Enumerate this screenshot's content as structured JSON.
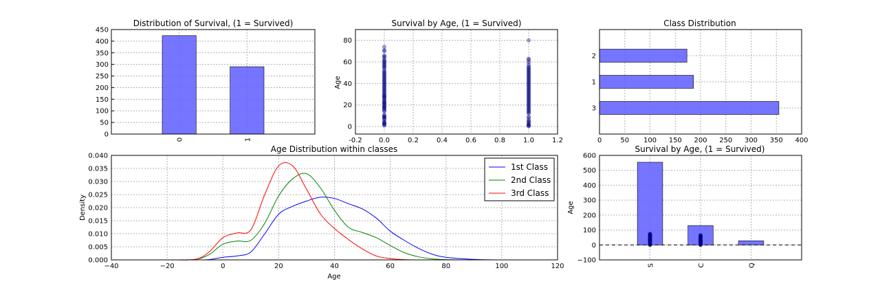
{
  "chart_data": [
    {
      "id": "survival_dist",
      "type": "bar",
      "title": "Distribution of Survival, (1 = Survived)",
      "categories": [
        "0",
        "1"
      ],
      "values": [
        424,
        290
      ],
      "ylim": [
        0,
        450
      ],
      "yticks": [
        0,
        50,
        100,
        150,
        200,
        250,
        300,
        350,
        400,
        450
      ],
      "xlabel": "",
      "ylabel": "",
      "grid": true,
      "color": "#6666ff"
    },
    {
      "id": "survival_by_age",
      "type": "scatter",
      "title": "Survival by Age,  (1 = Survived)",
      "xlabel": "",
      "ylabel": "Age",
      "xlim": [
        -0.2,
        1.2
      ],
      "ylim": [
        -7,
        90
      ],
      "xticks": [
        "-0.2",
        "0.0",
        "0.2",
        "0.4",
        "0.6",
        "0.8",
        "1.0",
        "1.2"
      ],
      "yticks": [
        0,
        20,
        40,
        60,
        80
      ],
      "grid": true,
      "color": "#000080",
      "series": [
        {
          "x": 0,
          "values": [
            1,
            2,
            2,
            3,
            4,
            4,
            6,
            7,
            8,
            9,
            9,
            10,
            11,
            14,
            15,
            16,
            17,
            18,
            18,
            19,
            20,
            21,
            22,
            22,
            23,
            24,
            25,
            26,
            27,
            28,
            28,
            29,
            30,
            31,
            32,
            33,
            34,
            35,
            36,
            37,
            38,
            39,
            40,
            41,
            42,
            43,
            44,
            45,
            46,
            47,
            48,
            49,
            50,
            51,
            52,
            54,
            55,
            56,
            57,
            58,
            59,
            60,
            61,
            62,
            64,
            65,
            66,
            70,
            71,
            74
          ]
        },
        {
          "x": 1,
          "values": [
            0.4,
            0.8,
            1,
            2,
            3,
            4,
            5,
            6,
            8,
            9,
            12,
            13,
            14,
            15,
            16,
            17,
            18,
            19,
            20,
            21,
            22,
            23,
            24,
            25,
            26,
            27,
            28,
            29,
            30,
            31,
            32,
            33,
            34,
            35,
            36,
            37,
            38,
            39,
            40,
            41,
            42,
            43,
            44,
            45,
            46,
            47,
            48,
            49,
            50,
            51,
            52,
            53,
            54,
            55,
            56,
            58,
            60,
            62,
            63,
            80
          ]
        }
      ]
    },
    {
      "id": "class_dist",
      "type": "bar",
      "orientation": "horizontal",
      "title": "Class Distribution",
      "categories": [
        "3",
        "1",
        "2"
      ],
      "values": [
        355,
        186,
        173
      ],
      "xlim": [
        0,
        400
      ],
      "xticks": [
        0,
        50,
        100,
        150,
        200,
        250,
        300,
        350,
        400
      ],
      "xlabel": "",
      "ylabel": "",
      "grid": true,
      "color": "#6666ff"
    },
    {
      "id": "age_kde",
      "type": "line",
      "title": "Age Distribution within classes",
      "xlabel": "Age",
      "ylabel": "Density",
      "xlim": [
        -40,
        120
      ],
      "ylim": [
        0,
        0.04
      ],
      "xticks": [
        -40,
        -20,
        0,
        20,
        40,
        60,
        80,
        100,
        120
      ],
      "yticks": [
        "0.000",
        "0.005",
        "0.010",
        "0.015",
        "0.020",
        "0.025",
        "0.030",
        "0.035",
        "0.040"
      ],
      "grid": true,
      "legend_position": "top-right",
      "x": [
        -40,
        -20,
        -10,
        -5,
        0,
        5,
        10,
        15,
        20,
        25,
        30,
        35,
        40,
        45,
        50,
        55,
        60,
        65,
        70,
        75,
        80,
        90,
        100,
        110,
        120
      ],
      "series": [
        {
          "name": "1st Class",
          "color": "#0000ff",
          "values": [
            0,
            0,
            0,
            0.0001,
            0.001,
            0.0015,
            0.003,
            0.01,
            0.0175,
            0.0205,
            0.0225,
            0.024,
            0.0235,
            0.0215,
            0.0195,
            0.016,
            0.011,
            0.0075,
            0.0045,
            0.0022,
            0.001,
            0.0002,
            0,
            0,
            0
          ]
        },
        {
          "name": "2nd Class",
          "color": "#008000",
          "values": [
            0,
            0,
            0.0002,
            0.002,
            0.006,
            0.0072,
            0.0075,
            0.014,
            0.0245,
            0.031,
            0.033,
            0.0275,
            0.019,
            0.0125,
            0.0105,
            0.0085,
            0.0055,
            0.0028,
            0.0012,
            0.0004,
            0.0001,
            0,
            0,
            0,
            0
          ]
        },
        {
          "name": "3rd Class",
          "color": "#ff0000",
          "values": [
            0,
            0,
            0.0002,
            0.003,
            0.0085,
            0.0103,
            0.0115,
            0.025,
            0.036,
            0.036,
            0.027,
            0.0175,
            0.012,
            0.0078,
            0.0042,
            0.0015,
            0.0005,
            0.0001,
            0,
            0,
            0,
            0,
            0,
            0,
            0
          ]
        }
      ]
    },
    {
      "id": "embarked",
      "type": "bar",
      "title": "Survival by Age,  (1 = Survived)",
      "xlabel": "",
      "ylabel": "Age",
      "categories": [
        "S",
        "C",
        "Q"
      ],
      "values": [
        554,
        130,
        28
      ],
      "ylim": [
        -100,
        600
      ],
      "yticks": [
        -100,
        0,
        100,
        200,
        300,
        400,
        500,
        600
      ],
      "grid": true,
      "color": "#6666ff",
      "scatter_color": "#000080",
      "scatter_overlay": [
        {
          "category": "S",
          "values": [
            0,
            5,
            10,
            15,
            20,
            25,
            30,
            35,
            40,
            45,
            50,
            55,
            60,
            65,
            70,
            74
          ]
        },
        {
          "category": "C",
          "values": [
            0,
            5,
            10,
            15,
            20,
            25,
            30,
            35,
            40,
            45,
            50,
            55,
            60,
            65
          ]
        }
      ]
    }
  ]
}
